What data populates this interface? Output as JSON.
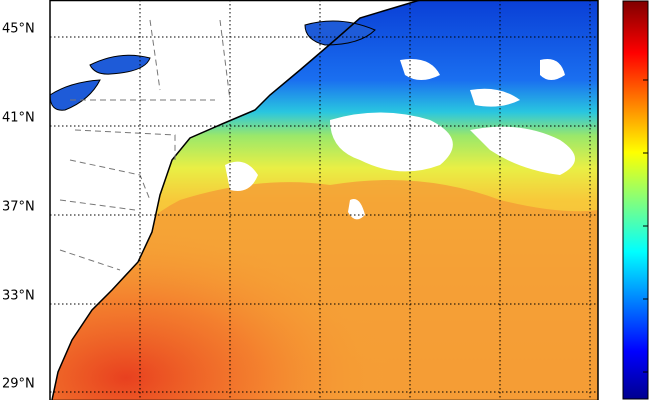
{
  "map": {
    "lat_labels": [
      "45°N",
      "41°N",
      "37°N",
      "33°N",
      "29°N"
    ]
  }
}
